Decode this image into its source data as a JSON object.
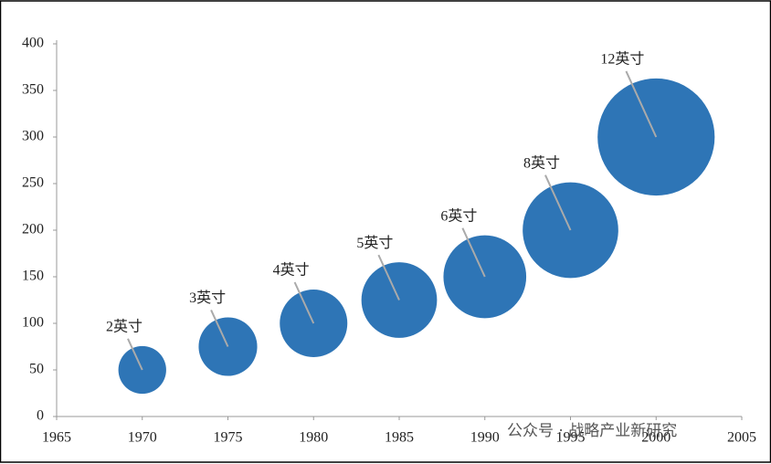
{
  "chart_data": {
    "type": "bubble",
    "x": [
      1970,
      1975,
      1980,
      1985,
      1990,
      1995,
      2000
    ],
    "values": [
      50,
      75,
      100,
      125,
      150,
      200,
      300
    ],
    "sizes": [
      2,
      3,
      4,
      5,
      6,
      8,
      12
    ],
    "size_labels": [
      "2英寸",
      "3英寸",
      "4英寸",
      "5英寸",
      "6英寸",
      "8英寸",
      "12英寸"
    ],
    "color": "#2e75b6",
    "xlim": [
      1965,
      2005
    ],
    "xticks": [
      1965,
      1970,
      1975,
      1980,
      1985,
      1990,
      1995,
      2000,
      2005
    ],
    "ylim": [
      0,
      400
    ],
    "yticks": [
      0,
      50,
      100,
      150,
      200,
      250,
      300,
      350,
      400
    ],
    "watermark": "公众号 · 战略产业新研究"
  }
}
